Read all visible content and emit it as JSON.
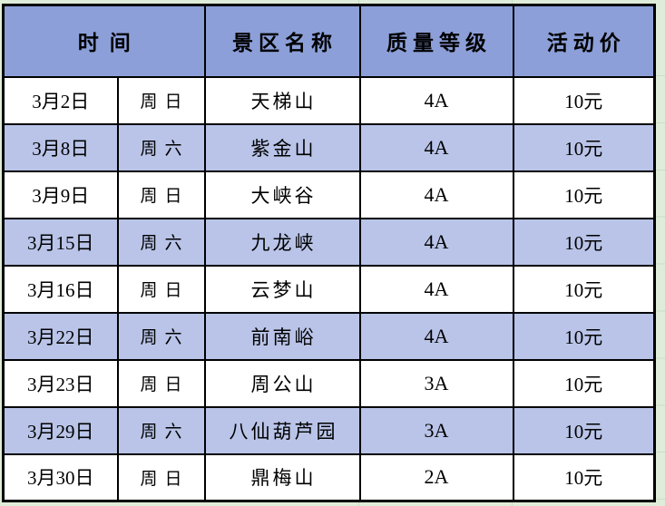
{
  "page": {
    "background_color": "#DFECD9",
    "gridline_color": "#C9DEC5"
  },
  "table": {
    "border_color": "#000000",
    "header": {
      "bg_color": "#8C9FD8",
      "time_label": "时间",
      "scenic_label": "景区名称",
      "grade_label": "质量等级",
      "price_label": "活动价"
    },
    "row_colors": {
      "plain": "#FFFFFF",
      "shaded": "#B9C4E8"
    },
    "rows": [
      {
        "date": "3月2日",
        "weekday": "周日",
        "scenic": "天梯山",
        "grade": "4A",
        "price": "10元",
        "shaded": false
      },
      {
        "date": "3月8日",
        "weekday": "周六",
        "scenic": "紫金山",
        "grade": "4A",
        "price": "10元",
        "shaded": true
      },
      {
        "date": "3月9日",
        "weekday": "周日",
        "scenic": "大峡谷",
        "grade": "4A",
        "price": "10元",
        "shaded": false
      },
      {
        "date": "3月15日",
        "weekday": "周六",
        "scenic": "九龙峡",
        "grade": "4A",
        "price": "10元",
        "shaded": true
      },
      {
        "date": "3月16日",
        "weekday": "周日",
        "scenic": "云梦山",
        "grade": "4A",
        "price": "10元",
        "shaded": false
      },
      {
        "date": "3月22日",
        "weekday": "周六",
        "scenic": "前南峪",
        "grade": "4A",
        "price": "10元",
        "shaded": true
      },
      {
        "date": "3月23日",
        "weekday": "周日",
        "scenic": "周公山",
        "grade": "3A",
        "price": "10元",
        "shaded": false
      },
      {
        "date": "3月29日",
        "weekday": "周六",
        "scenic": "八仙葫芦园",
        "grade": "3A",
        "price": "10元",
        "shaded": true
      },
      {
        "date": "3月30日",
        "weekday": "周日",
        "scenic": "鼎梅山",
        "grade": "2A",
        "price": "10元",
        "shaded": false
      }
    ]
  }
}
